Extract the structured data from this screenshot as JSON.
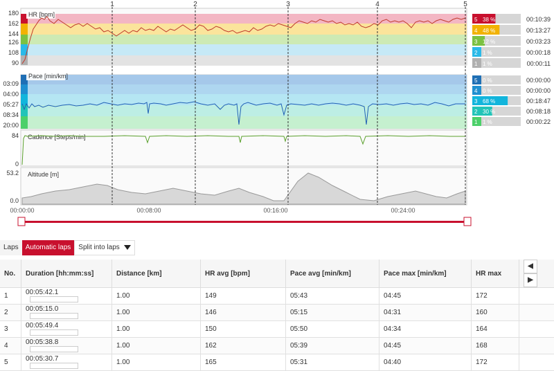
{
  "hr_panel": {
    "title": "HR [bpm]",
    "ticks": [
      "180",
      "162",
      "144",
      "126",
      "108",
      "90"
    ],
    "zones": [
      {
        "zone": "5",
        "pct": "38 %",
        "pct_value": 38,
        "time": "00:10:39",
        "color": "#c8102e"
      },
      {
        "zone": "4",
        "pct": "48 %",
        "pct_value": 48,
        "time": "00:13:27",
        "color": "#f2b203"
      },
      {
        "zone": "3",
        "pct": "12 %",
        "pct_value": 12,
        "time": "00:03:23",
        "color": "#7cc142"
      },
      {
        "zone": "2",
        "pct": "1 %",
        "pct_value": 1,
        "time": "00:00:18",
        "color": "#2ab9e8"
      },
      {
        "zone": "1",
        "pct": "1 %",
        "pct_value": 1,
        "time": "00:00:11",
        "color": "#b0b0b0"
      }
    ]
  },
  "pace_panel": {
    "title": "Pace [min/km]",
    "ticks": [
      "03:09",
      "04:00",
      "05:27",
      "08:34",
      "20:00"
    ],
    "zones": [
      {
        "zone": "5",
        "pct": "0 %",
        "pct_value": 0,
        "time": "00:00:00",
        "color": "#1f6fb5"
      },
      {
        "zone": "4",
        "pct": "0 %",
        "pct_value": 0,
        "time": "00:00:00",
        "color": "#1f8fd0"
      },
      {
        "zone": "3",
        "pct": "68 %",
        "pct_value": 68,
        "time": "00:18:47",
        "color": "#12b5dc"
      },
      {
        "zone": "2",
        "pct": "30 %",
        "pct_value": 30,
        "time": "00:08:18",
        "color": "#22c4b8"
      },
      {
        "zone": "1",
        "pct": "1 %",
        "pct_value": 1,
        "time": "00:00:22",
        "color": "#4cd06a"
      }
    ]
  },
  "cadence_panel": {
    "title": "Cadence [Steps/min]",
    "ticks": [
      "84",
      "0"
    ]
  },
  "altitude_panel": {
    "title": "Altitude [m]",
    "ticks": [
      "53.2",
      "0.0"
    ]
  },
  "lap_markers": [
    "1",
    "2",
    "3",
    "4",
    "5"
  ],
  "time_axis": [
    "00:00:00",
    "00:08:00",
    "00:16:00",
    "00:24:00"
  ],
  "tabs": {
    "laps": "Laps",
    "automatic": "Automatic laps",
    "split": "Split into laps"
  },
  "table": {
    "headers": [
      "No.",
      "Duration [hh:mm:ss]",
      "Distance [km]",
      "HR avg [bpm]",
      "Pace avg [min/km]",
      "Pace max [min/km]",
      "HR max"
    ],
    "rows": [
      {
        "no": "1",
        "duration": "00:05:42.1",
        "distance": "1.00",
        "hr_avg": "149",
        "pace_avg": "05:43",
        "pace_max": "04:45",
        "hr_max": "172"
      },
      {
        "no": "2",
        "duration": "00:05:15.0",
        "distance": "1.00",
        "hr_avg": "146",
        "pace_avg": "05:15",
        "pace_max": "04:31",
        "hr_max": "160"
      },
      {
        "no": "3",
        "duration": "00:05:49.4",
        "distance": "1.00",
        "hr_avg": "150",
        "pace_avg": "05:50",
        "pace_max": "04:34",
        "hr_max": "164"
      },
      {
        "no": "4",
        "duration": "00:05:38.8",
        "distance": "1.00",
        "hr_avg": "162",
        "pace_avg": "05:39",
        "pace_max": "04:45",
        "hr_max": "168"
      },
      {
        "no": "5",
        "duration": "00:05:30.7",
        "distance": "1.00",
        "hr_avg": "165",
        "pace_avg": "05:31",
        "pace_max": "04:40",
        "hr_max": "172"
      }
    ]
  },
  "colors": {
    "accent": "#c8102e",
    "hr_line": "#c0392b",
    "pace_line": "#1f5fb5",
    "cadence_line": "#5aa02c",
    "altitude_fill": "#d8d8d8"
  }
}
